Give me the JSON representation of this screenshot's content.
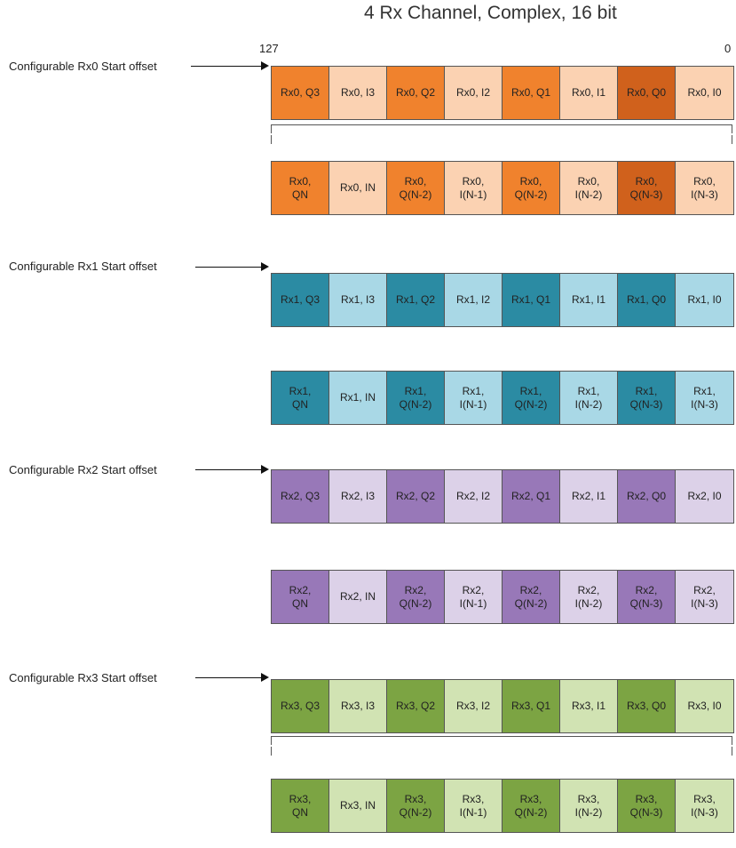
{
  "title": "4 Rx Channel, Complex, 16 bit",
  "bit_high": "127",
  "bit_low": "0",
  "channels": [
    {
      "offset_label": "Configurable Rx0 Start offset",
      "colors": {
        "dark": "#f0822d",
        "light": "#fbd2b2",
        "darkest": "#d0611c"
      },
      "row_a": [
        "Rx0, Q3",
        "Rx0, I3",
        "Rx0, Q2",
        "Rx0, I2",
        "Rx0, Q1",
        "Rx0, I1",
        "Rx0, Q0",
        "Rx0, I0"
      ],
      "row_b": [
        "Rx0,\nQN",
        "Rx0, IN",
        "Rx0,\nQ(N-2)",
        "Rx0,\nI(N-1)",
        "Rx0,\nQ(N-2)",
        "Rx0,\nI(N-2)",
        "Rx0,\nQ(N-3)",
        "Rx0,\nI(N-3)"
      ]
    },
    {
      "offset_label": "Configurable Rx1 Start offset",
      "colors": {
        "dark": "#2b8ba3",
        "light": "#a9d8e6",
        "darkest": "#2b8ba3"
      },
      "row_a": [
        "Rx1, Q3",
        "Rx1, I3",
        "Rx1, Q2",
        "Rx1, I2",
        "Rx1, Q1",
        "Rx1, I1",
        "Rx1, Q0",
        "Rx1, I0"
      ],
      "row_b": [
        "Rx1,\nQN",
        "Rx1, IN",
        "Rx1,\nQ(N-2)",
        "Rx1,\nI(N-1)",
        "Rx1,\nQ(N-2)",
        "Rx1,\nI(N-2)",
        "Rx1,\nQ(N-3)",
        "Rx1,\nI(N-3)"
      ]
    },
    {
      "offset_label": "Configurable Rx2 Start offset",
      "colors": {
        "dark": "#9878b8",
        "light": "#dcd1e8",
        "darkest": "#9878b8"
      },
      "row_a": [
        "Rx2, Q3",
        "Rx2, I3",
        "Rx2, Q2",
        "Rx2, I2",
        "Rx2, Q1",
        "Rx2, I1",
        "Rx2, Q0",
        "Rx2, I0"
      ],
      "row_b": [
        "Rx2,\nQN",
        "Rx2, IN",
        "Rx2,\nQ(N-2)",
        "Rx2,\nI(N-1)",
        "Rx2,\nQ(N-2)",
        "Rx2,\nI(N-2)",
        "Rx2,\nQ(N-3)",
        "Rx2,\nI(N-3)"
      ]
    },
    {
      "offset_label": "Configurable Rx3 Start offset",
      "colors": {
        "dark": "#7ca443",
        "light": "#d1e3b3",
        "darkest": "#7ca443"
      },
      "row_a": [
        "Rx3, Q3",
        "Rx3, I3",
        "Rx3, Q2",
        "Rx3, I2",
        "Rx3, Q1",
        "Rx3, I1",
        "Rx3, Q0",
        "Rx3, I0"
      ],
      "row_b": [
        "Rx3,\nQN",
        "Rx3, IN",
        "Rx3,\nQ(N-2)",
        "Rx3,\nI(N-1)",
        "Rx3,\nQ(N-2)",
        "Rx3,\nI(N-2)",
        "Rx3,\nQ(N-3)",
        "Rx3,\nI(N-3)"
      ]
    }
  ]
}
